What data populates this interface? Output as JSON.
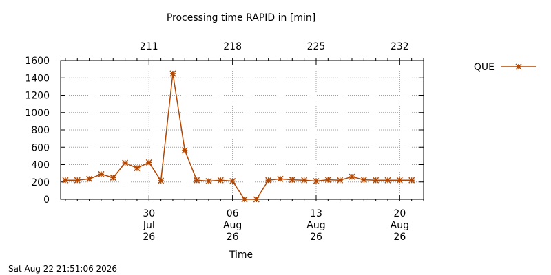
{
  "chart_data": {
    "type": "line",
    "title": "Processing time RAPID in [min]",
    "xlabel": "Time",
    "ylabel": "",
    "ylim": [
      0,
      1600
    ],
    "yticks": [
      "0",
      "200",
      "400",
      "600",
      "800",
      "1000",
      "1200",
      "1400",
      "1600"
    ],
    "xlim": [
      "2026-07-23",
      "2026-08-22"
    ],
    "x_ticks": [
      {
        "date": "2026-07-30",
        "label": [
          "30",
          "Jul",
          "26"
        ]
      },
      {
        "date": "2026-08-06",
        "label": [
          "06",
          "Aug",
          "26"
        ]
      },
      {
        "date": "2026-08-13",
        "label": [
          "13",
          "Aug",
          "26"
        ]
      },
      {
        "date": "2026-08-20",
        "label": [
          "20",
          "Aug",
          "26"
        ]
      }
    ],
    "x2_ticks": [
      {
        "date": "2026-07-30",
        "label": "211"
      },
      {
        "date": "2026-08-06",
        "label": "218"
      },
      {
        "date": "2026-08-13",
        "label": "225"
      },
      {
        "date": "2026-08-20",
        "label": "232"
      }
    ],
    "grid": true,
    "legend": "top-right",
    "series": [
      {
        "name": "QUE",
        "color": "#b34700",
        "marker": "asterisk",
        "x": [
          "2026-07-23",
          "2026-07-24",
          "2026-07-25",
          "2026-07-26",
          "2026-07-27",
          "2026-07-28",
          "2026-07-29",
          "2026-07-30",
          "2026-07-31",
          "2026-08-01",
          "2026-08-02",
          "2026-08-03",
          "2026-08-04",
          "2026-08-05",
          "2026-08-06",
          "2026-08-07",
          "2026-08-08",
          "2026-08-09",
          "2026-08-10",
          "2026-08-11",
          "2026-08-12",
          "2026-08-13",
          "2026-08-14",
          "2026-08-15",
          "2026-08-16",
          "2026-08-17",
          "2026-08-18",
          "2026-08-19",
          "2026-08-20",
          "2026-08-21"
        ],
        "values": [
          220,
          220,
          235,
          290,
          250,
          420,
          360,
          425,
          215,
          1450,
          565,
          220,
          210,
          220,
          210,
          0,
          0,
          220,
          235,
          225,
          220,
          210,
          225,
          220,
          260,
          225,
          220,
          220,
          220,
          220
        ]
      }
    ]
  },
  "timestamp": "Sat Aug 22 21:51:06 2026"
}
